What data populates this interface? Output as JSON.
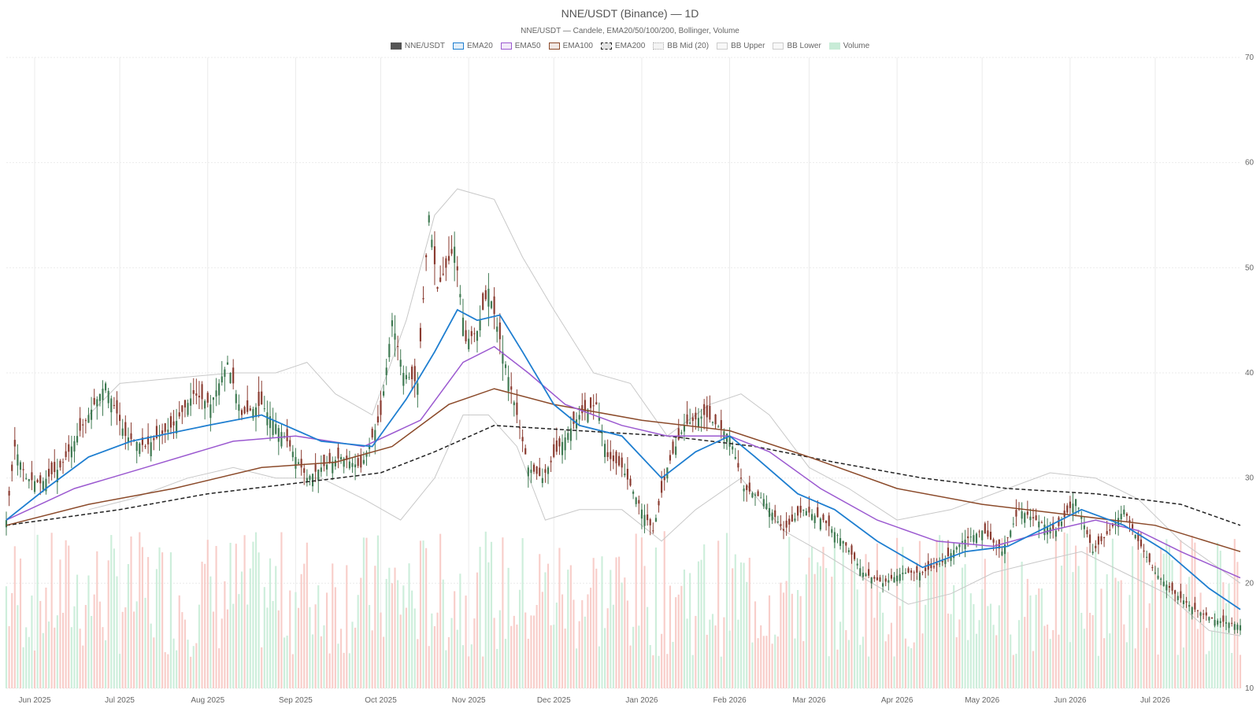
{
  "chart_data": {
    "type": "candlestick",
    "title": "NNE/USDT (Binance) — 1D",
    "subtitle": "NNE/USDT — Candele, EMA20/50/100/200, Bollinger, Volume",
    "legend": [
      {
        "label": "NNE/USDT",
        "color": "#555555",
        "style": "solid-fill"
      },
      {
        "label": "EMA20",
        "color": "#1e7ed0",
        "style": "line"
      },
      {
        "label": "EMA50",
        "color": "#9b59d0",
        "style": "line"
      },
      {
        "label": "EMA100",
        "color": "#8b4a2a",
        "style": "line"
      },
      {
        "label": "EMA200",
        "color": "#222222",
        "style": "dashed"
      },
      {
        "label": "BB Mid (20)",
        "color": "#aaaaaa",
        "style": "dotted"
      },
      {
        "label": "BB Upper",
        "color": "#cccccc",
        "style": "line"
      },
      {
        "label": "BB Lower",
        "color": "#cccccc",
        "style": "line"
      },
      {
        "label": "Volume",
        "color": "#c8ecd7",
        "style": "fill"
      }
    ],
    "x_ticks": [
      "Jun 2025",
      "Jul 2025",
      "Aug 2025",
      "Sep 2025",
      "Oct 2025",
      "Nov 2025",
      "Dec 2025",
      "Jan 2026",
      "Feb 2026",
      "Mar 2026",
      "Apr 2026",
      "May 2026",
      "Jun 2026",
      "Jul 2026"
    ],
    "y_ticks": [
      10,
      20,
      30,
      40,
      50,
      60,
      70
    ],
    "ylim": [
      10,
      70
    ],
    "x_range": [
      "2025-05-22",
      "2026-07-31"
    ],
    "colors": {
      "up": "#3f7a52",
      "down": "#8a3b30",
      "vol_up": "#c8ecd7",
      "vol_down": "#f7c9c4",
      "grid": "#ebebeb"
    },
    "ohlc_keyframes": [
      [
        "2025-05-22",
        26
      ],
      [
        "2025-05-25",
        33
      ],
      [
        "2025-05-29",
        30
      ],
      [
        "2025-06-03",
        29.5
      ],
      [
        "2025-06-10",
        31
      ],
      [
        "2025-06-18",
        35
      ],
      [
        "2025-06-26",
        39
      ],
      [
        "2025-07-03",
        34
      ],
      [
        "2025-07-10",
        33
      ],
      [
        "2025-07-20",
        35
      ],
      [
        "2025-07-27",
        38
      ],
      [
        "2025-08-02",
        37
      ],
      [
        "2025-08-08",
        41
      ],
      [
        "2025-08-13",
        36
      ],
      [
        "2025-08-20",
        37
      ],
      [
        "2025-08-28",
        34
      ],
      [
        "2025-09-05",
        30
      ],
      [
        "2025-09-10",
        31
      ],
      [
        "2025-09-17",
        32
      ],
      [
        "2025-09-24",
        31
      ],
      [
        "2025-10-01",
        36
      ],
      [
        "2025-10-05",
        45
      ],
      [
        "2025-10-09",
        40
      ],
      [
        "2025-10-14",
        39
      ],
      [
        "2025-10-18",
        55
      ],
      [
        "2025-10-21",
        48
      ],
      [
        "2025-10-27",
        52
      ],
      [
        "2025-10-31",
        43
      ],
      [
        "2025-11-04",
        44
      ],
      [
        "2025-11-08",
        48
      ],
      [
        "2025-11-13",
        42
      ],
      [
        "2025-11-18",
        36
      ],
      [
        "2025-11-22",
        31
      ],
      [
        "2025-11-27",
        30
      ],
      [
        "2025-12-03",
        33
      ],
      [
        "2025-12-10",
        36
      ],
      [
        "2025-12-16",
        37
      ],
      [
        "2025-12-20",
        32
      ],
      [
        "2025-12-25",
        31
      ],
      [
        "2026-01-01",
        27
      ],
      [
        "2026-01-05",
        25
      ],
      [
        "2026-01-10",
        31
      ],
      [
        "2026-01-16",
        35
      ],
      [
        "2026-01-23",
        36
      ],
      [
        "2026-02-01",
        34
      ],
      [
        "2026-02-06",
        29
      ],
      [
        "2026-02-13",
        28
      ],
      [
        "2026-02-20",
        25
      ],
      [
        "2026-02-27",
        27
      ],
      [
        "2026-03-06",
        26
      ],
      [
        "2026-03-13",
        24
      ],
      [
        "2026-03-20",
        21
      ],
      [
        "2026-03-27",
        20
      ],
      [
        "2026-04-03",
        21
      ],
      [
        "2026-04-10",
        21
      ],
      [
        "2026-04-17",
        22
      ],
      [
        "2026-04-24",
        24
      ],
      [
        "2026-05-01",
        25
      ],
      [
        "2026-05-08",
        23
      ],
      [
        "2026-05-14",
        27
      ],
      [
        "2026-05-20",
        26
      ],
      [
        "2026-05-27",
        25
      ],
      [
        "2026-06-03",
        28
      ],
      [
        "2026-06-09",
        23
      ],
      [
        "2026-06-15",
        25
      ],
      [
        "2026-06-20",
        27
      ],
      [
        "2026-06-25",
        24
      ],
      [
        "2026-07-01",
        21
      ],
      [
        "2026-07-08",
        19
      ],
      [
        "2026-07-15",
        17.5
      ],
      [
        "2026-07-22",
        16.5
      ],
      [
        "2026-07-31",
        16
      ]
    ],
    "ema20": [
      [
        "2025-05-22",
        26
      ],
      [
        "2025-06-05",
        29
      ],
      [
        "2025-06-20",
        32
      ],
      [
        "2025-07-05",
        33.5
      ],
      [
        "2025-08-01",
        35
      ],
      [
        "2025-08-20",
        36
      ],
      [
        "2025-09-10",
        33.5
      ],
      [
        "2025-09-28",
        33
      ],
      [
        "2025-10-10",
        37.5
      ],
      [
        "2025-10-20",
        42
      ],
      [
        "2025-10-28",
        46
      ],
      [
        "2025-11-04",
        45
      ],
      [
        "2025-11-12",
        45.5
      ],
      [
        "2025-11-20",
        42
      ],
      [
        "2025-12-01",
        37
      ],
      [
        "2025-12-10",
        35
      ],
      [
        "2025-12-25",
        34
      ],
      [
        "2026-01-08",
        30
      ],
      [
        "2026-01-20",
        32.5
      ],
      [
        "2026-02-01",
        34
      ],
      [
        "2026-02-10",
        32
      ],
      [
        "2026-02-25",
        28.5
      ],
      [
        "2026-03-10",
        27
      ],
      [
        "2026-03-25",
        24
      ],
      [
        "2026-04-10",
        21.5
      ],
      [
        "2026-04-25",
        23
      ],
      [
        "2026-05-10",
        23.5
      ],
      [
        "2026-05-25",
        25.5
      ],
      [
        "2026-06-05",
        27
      ],
      [
        "2026-06-20",
        25.5
      ],
      [
        "2026-07-05",
        23
      ],
      [
        "2026-07-20",
        19.5
      ],
      [
        "2026-07-31",
        17.5
      ]
    ],
    "ema50": [
      [
        "2025-05-22",
        26
      ],
      [
        "2025-06-15",
        29
      ],
      [
        "2025-07-10",
        31
      ],
      [
        "2025-08-10",
        33.5
      ],
      [
        "2025-09-01",
        34
      ],
      [
        "2025-09-25",
        33
      ],
      [
        "2025-10-15",
        35.5
      ],
      [
        "2025-10-30",
        41
      ],
      [
        "2025-11-10",
        42.5
      ],
      [
        "2025-11-22",
        40
      ],
      [
        "2025-12-05",
        37
      ],
      [
        "2025-12-25",
        35
      ],
      [
        "2026-01-10",
        34
      ],
      [
        "2026-02-01",
        34
      ],
      [
        "2026-02-15",
        32.5
      ],
      [
        "2026-03-05",
        29
      ],
      [
        "2026-03-25",
        26
      ],
      [
        "2026-04-15",
        24
      ],
      [
        "2026-05-05",
        23.5
      ],
      [
        "2026-05-25",
        25
      ],
      [
        "2026-06-10",
        26
      ],
      [
        "2026-06-25",
        25
      ],
      [
        "2026-07-10",
        23
      ],
      [
        "2026-07-31",
        20.5
      ]
    ],
    "ema100": [
      [
        "2025-05-22",
        25.5
      ],
      [
        "2025-06-20",
        27.5
      ],
      [
        "2025-07-20",
        29
      ],
      [
        "2025-08-20",
        31
      ],
      [
        "2025-09-15",
        31.5
      ],
      [
        "2025-10-05",
        33
      ],
      [
        "2025-10-25",
        37
      ],
      [
        "2025-11-10",
        38.5
      ],
      [
        "2025-12-01",
        37
      ],
      [
        "2026-01-01",
        35.5
      ],
      [
        "2026-02-01",
        34.5
      ],
      [
        "2026-03-01",
        32
      ],
      [
        "2026-04-01",
        29
      ],
      [
        "2026-05-01",
        27.5
      ],
      [
        "2026-06-01",
        26.5
      ],
      [
        "2026-07-01",
        25.5
      ],
      [
        "2026-07-31",
        23
      ]
    ],
    "ema200": [
      [
        "2025-05-22",
        25.5
      ],
      [
        "2025-07-01",
        27
      ],
      [
        "2025-08-01",
        28.5
      ],
      [
        "2025-09-01",
        29.5
      ],
      [
        "2025-10-01",
        30.5
      ],
      [
        "2025-10-20",
        32.5
      ],
      [
        "2025-11-10",
        35
      ],
      [
        "2025-12-10",
        34.5
      ],
      [
        "2026-01-10",
        34
      ],
      [
        "2026-02-10",
        33
      ],
      [
        "2026-03-10",
        31.5
      ],
      [
        "2026-04-10",
        30
      ],
      [
        "2026-05-10",
        29
      ],
      [
        "2026-06-10",
        28.5
      ],
      [
        "2026-07-10",
        27.5
      ],
      [
        "2026-07-31",
        25.5
      ]
    ],
    "bb_upper": [
      [
        "2025-06-01",
        null
      ],
      [
        "2025-06-20",
        36
      ],
      [
        "2025-07-01",
        39
      ],
      [
        "2025-07-20",
        39.5
      ],
      [
        "2025-08-10",
        40
      ],
      [
        "2025-08-25",
        40
      ],
      [
        "2025-09-05",
        41
      ],
      [
        "2025-09-15",
        38
      ],
      [
        "2025-09-28",
        36
      ],
      [
        "2025-10-10",
        45
      ],
      [
        "2025-10-20",
        55
      ],
      [
        "2025-10-28",
        57.5
      ],
      [
        "2025-11-10",
        56.5
      ],
      [
        "2025-11-20",
        51
      ],
      [
        "2025-12-01",
        46
      ],
      [
        "2025-12-15",
        40
      ],
      [
        "2025-12-28",
        39
      ],
      [
        "2026-01-10",
        34
      ],
      [
        "2026-01-25",
        37
      ],
      [
        "2026-02-05",
        38
      ],
      [
        "2026-02-15",
        36
      ],
      [
        "2026-03-01",
        31
      ],
      [
        "2026-03-15",
        29
      ],
      [
        "2026-04-01",
        26
      ],
      [
        "2026-04-20",
        27
      ],
      [
        "2026-05-10",
        29
      ],
      [
        "2026-05-25",
        30.5
      ],
      [
        "2026-06-10",
        30
      ],
      [
        "2026-06-25",
        28
      ],
      [
        "2026-07-10",
        24
      ],
      [
        "2026-07-31",
        20
      ]
    ],
    "bb_lower": [
      [
        "2025-06-01",
        null
      ],
      [
        "2025-06-20",
        27
      ],
      [
        "2025-07-05",
        28
      ],
      [
        "2025-07-25",
        30
      ],
      [
        "2025-08-10",
        31
      ],
      [
        "2025-08-25",
        30
      ],
      [
        "2025-09-10",
        30
      ],
      [
        "2025-09-25",
        28
      ],
      [
        "2025-10-08",
        26
      ],
      [
        "2025-10-20",
        30
      ],
      [
        "2025-10-30",
        36
      ],
      [
        "2025-11-08",
        36
      ],
      [
        "2025-11-18",
        33
      ],
      [
        "2025-11-28",
        26
      ],
      [
        "2025-12-10",
        27
      ],
      [
        "2025-12-25",
        27
      ],
      [
        "2026-01-08",
        24
      ],
      [
        "2026-01-20",
        27
      ],
      [
        "2026-02-05",
        30
      ],
      [
        "2026-02-20",
        25
      ],
      [
        "2026-03-05",
        23
      ],
      [
        "2026-03-20",
        20.5
      ],
      [
        "2026-04-05",
        18
      ],
      [
        "2026-04-20",
        19
      ],
      [
        "2026-05-05",
        21
      ],
      [
        "2026-05-20",
        22
      ],
      [
        "2026-06-05",
        23
      ],
      [
        "2026-06-20",
        21
      ],
      [
        "2026-07-05",
        19
      ],
      [
        "2026-07-20",
        15.5
      ],
      [
        "2026-07-31",
        15
      ]
    ]
  }
}
